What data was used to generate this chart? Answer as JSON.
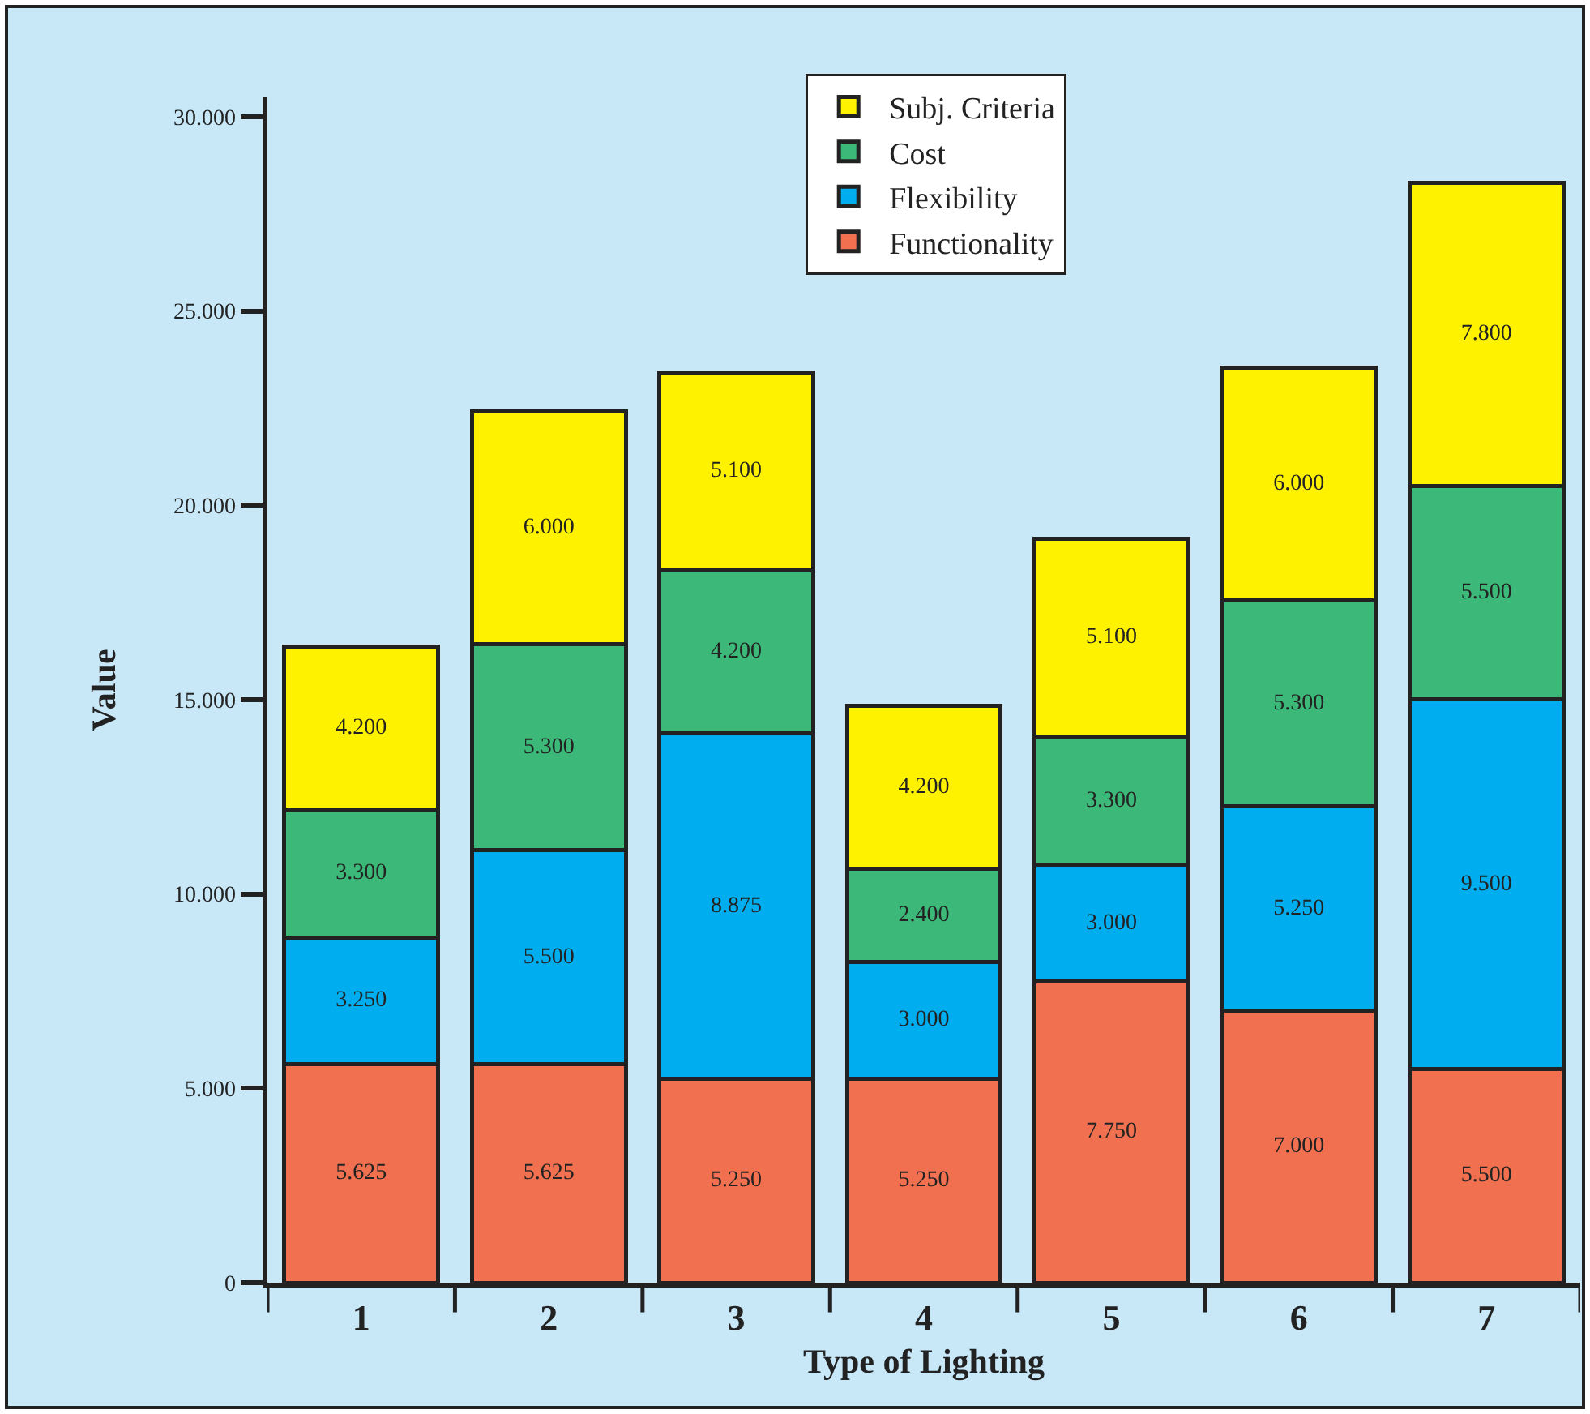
{
  "chart_data": {
    "type": "bar",
    "xlabel": "Type of Lighting",
    "ylabel": "Value",
    "categories": [
      "1",
      "2",
      "3",
      "4",
      "5",
      "6",
      "7"
    ],
    "stacked": true,
    "series": [
      {
        "name": "Functionality",
        "color": "#f07050",
        "values": [
          5625,
          5625,
          5250,
          5250,
          7750,
          7000,
          5500
        ],
        "value_labels": [
          "5.625",
          "5.625",
          "5.250",
          "5.250",
          "7.750",
          "7.000",
          "5.500"
        ]
      },
      {
        "name": "Flexibility",
        "color": "#00aeef",
        "values": [
          3250,
          5500,
          8875,
          3000,
          3000,
          5250,
          9500
        ],
        "value_labels": [
          "3.250",
          "5.500",
          "8.875",
          "3.000",
          "3.000",
          "5.250",
          "9.500"
        ]
      },
      {
        "name": "Cost",
        "color": "#3cb878",
        "values": [
          3300,
          5300,
          4200,
          2400,
          3300,
          5300,
          5500
        ],
        "value_labels": [
          "3.300",
          "5.300",
          "4.200",
          "2.400",
          "3.300",
          "5.300",
          "5.500"
        ]
      },
      {
        "name": "Subj. Criteria",
        "color": "#fff200",
        "values": [
          4200,
          6000,
          5100,
          4200,
          5100,
          6000,
          7800
        ],
        "value_labels": [
          "4.200",
          "6.000",
          "5.100",
          "4.200",
          "5.100",
          "6.000",
          "7.800"
        ]
      }
    ],
    "ylim": [
      0,
      30500
    ],
    "yticks": [
      0,
      {
        "value": 5000,
        "label": "5.000"
      },
      {
        "value": 10000,
        "label": "10.000"
      },
      {
        "value": 15000,
        "label": "15.000"
      },
      {
        "value": 20000,
        "label": "20.000"
      },
      {
        "value": 25000,
        "label": "25.000"
      },
      {
        "value": 30000,
        "label": "30.000"
      }
    ],
    "grid": false,
    "legend": "top"
  }
}
